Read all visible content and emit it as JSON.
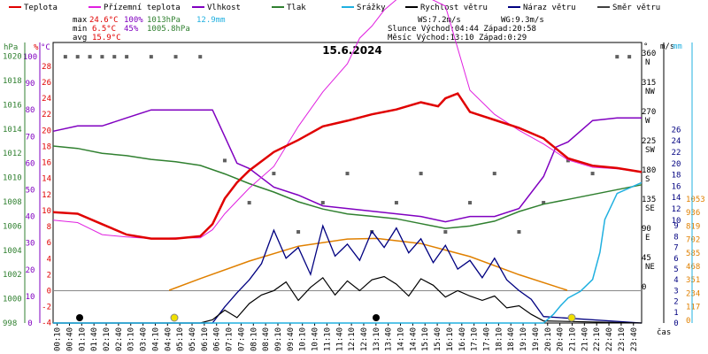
{
  "title": "15.6.2024",
  "legend": [
    {
      "label": "Teplota",
      "color": "#e00000"
    },
    {
      "label": "Přízemní teplota",
      "color": "#e020e0"
    },
    {
      "label": "Vlhkost",
      "color": "#8000c0"
    },
    {
      "label": "Tlak",
      "color": "#308030"
    },
    {
      "label": "Srážky",
      "color": "#20b0e0"
    },
    {
      "label": "Rychlost větru",
      "color": "#000000"
    },
    {
      "label": "Náraz větru",
      "color": "#000080"
    },
    {
      "label": "Směr větru",
      "color": "#404040"
    }
  ],
  "stats": {
    "max_label": "max",
    "max_temp": "24.6°C",
    "max_hum": "100%",
    "max_press": "1013hPa",
    "max_rain": "12.9mm",
    "min_label": "min",
    "min_temp": "6.5°C",
    "min_hum": "45%",
    "min_press": "1005.8hPa",
    "avg_label": "avg",
    "avg_temp": "15.9°C",
    "ws": "WS:7.2m/s",
    "wg": "WG:9.3m/s",
    "sun": "Slunce Východ:04:44  Západ:20:58",
    "moon": "Měsíc  Východ:13:10  Západ:0:29"
  },
  "axes": {
    "hpa_unit": "hPa",
    "pct_unit": "%",
    "c_unit": "°C",
    "deg_unit": "°",
    "ms_unit": "m/s",
    "mm_unit": "mm",
    "x_unit": "čas",
    "hpa_ticks": [
      "1020",
      "1018",
      "1016",
      "1014",
      "1012",
      "1010",
      "1008",
      "1006",
      "1004",
      "1002",
      "1000",
      "998"
    ],
    "pct_ticks": [
      "100",
      "90",
      "80",
      "70",
      "60",
      "50",
      "40",
      "30",
      "20",
      "10",
      "0"
    ],
    "c_ticks": [
      "28",
      "26",
      "24",
      "22",
      "20",
      "18",
      "16",
      "14",
      "12",
      "10",
      "8",
      "6",
      "4",
      "2",
      "0",
      "-2",
      "-4"
    ],
    "dir_ticks": [
      "360\nN",
      "315\nNW",
      "270\nW",
      "225\nSW",
      "180\nS",
      "135\nSE",
      "90\nE",
      "45\nNE",
      "0"
    ],
    "ms_ticks": [
      "26",
      "24",
      "22",
      "20",
      "18",
      "16",
      "14",
      "12",
      "10",
      "9",
      "8",
      "7",
      "6",
      "5",
      "4",
      "3",
      "2",
      "1",
      "0"
    ],
    "mm_ticks": [
      "1053",
      "936",
      "819",
      "702",
      "585",
      "468",
      "351",
      "234",
      "117",
      "0"
    ],
    "x_ticks": [
      "00:10",
      "00:40",
      "01:10",
      "01:40",
      "02:10",
      "02:40",
      "03:10",
      "03:40",
      "04:10",
      "04:40",
      "05:10",
      "05:40",
      "06:10",
      "06:40",
      "07:10",
      "07:40",
      "08:10",
      "08:40",
      "09:10",
      "09:40",
      "10:10",
      "10:40",
      "11:10",
      "11:40",
      "12:10",
      "12:40",
      "13:10",
      "13:40",
      "14:10",
      "14:40",
      "15:10",
      "15:40",
      "16:10",
      "16:40",
      "17:10",
      "17:40",
      "18:10",
      "18:40",
      "19:10",
      "19:40",
      "20:10",
      "20:40",
      "21:10",
      "21:40",
      "22:10",
      "22:40",
      "23:10",
      "23:40"
    ]
  },
  "chart_data": {
    "type": "line",
    "title": "15.6.2024",
    "x_unit": "hours",
    "ylim_temp": [
      -4,
      28
    ],
    "ylim_humidity": [
      0,
      100
    ],
    "ylim_pressure": [
      998,
      1020
    ],
    "ylim_wind": [
      0,
      26
    ],
    "series": [
      {
        "name": "Teplota",
        "unit": "°C",
        "x": [
          0,
          1,
          2,
          3,
          4,
          5,
          6,
          6.5,
          7,
          7.5,
          8,
          9,
          10,
          11,
          12,
          13,
          14,
          15,
          15.7,
          16,
          16.5,
          17,
          18,
          19,
          20,
          21,
          22,
          23,
          24
        ],
        "values": [
          9.8,
          9.6,
          8.3,
          7.0,
          6.5,
          6.5,
          6.8,
          8.3,
          11.5,
          13.5,
          15.0,
          17.3,
          18.8,
          20.5,
          21.2,
          22.0,
          22.6,
          23.5,
          23.0,
          24.0,
          24.6,
          22.3,
          21.3,
          20.3,
          19.0,
          16.5,
          15.6,
          15.3,
          14.8
        ]
      },
      {
        "name": "Přízemní teplota",
        "unit": "°C",
        "x": [
          0,
          1,
          2,
          3,
          4,
          5,
          6,
          6.5,
          7,
          7.5,
          8,
          9,
          10,
          11,
          12,
          12.5,
          13,
          13.5,
          14,
          15,
          16,
          17,
          18,
          19,
          20,
          21,
          22,
          23,
          24
        ],
        "values": [
          8.8,
          8.5,
          7.0,
          6.7,
          6.5,
          6.6,
          6.6,
          7.6,
          9.6,
          11.2,
          12.8,
          15.5,
          20.5,
          24.8,
          28.3,
          31.5,
          33.0,
          35.0,
          36.3,
          37.0,
          35.5,
          25.0,
          22.0,
          20.0,
          18.3,
          16.3,
          15.4,
          15.2,
          14.8
        ]
      },
      {
        "name": "Vlhkost",
        "unit": "%",
        "x": [
          0,
          1,
          2,
          3,
          4,
          5,
          6,
          6.5,
          7,
          7.5,
          8,
          9,
          10,
          11,
          12,
          13,
          14,
          15,
          16,
          17,
          18,
          19,
          20,
          20.5,
          21,
          22,
          23,
          24
        ],
        "values": [
          72,
          74,
          74,
          77,
          80,
          80,
          80,
          80,
          70,
          60,
          58,
          51,
          48,
          44,
          43,
          42,
          41,
          40,
          38,
          40,
          40,
          43,
          55,
          66,
          68,
          76,
          77,
          77
        ]
      },
      {
        "name": "Tlak",
        "unit": "hPa",
        "x": [
          0,
          1,
          2,
          3,
          4,
          5,
          6,
          7,
          8,
          9,
          10,
          11,
          12,
          13,
          14,
          15,
          16,
          17,
          18,
          19,
          20,
          21,
          22,
          23,
          24
        ],
        "values": [
          1012.6,
          1012.4,
          1012.0,
          1011.8,
          1011.5,
          1011.3,
          1011.0,
          1010.3,
          1009.5,
          1008.8,
          1008.0,
          1007.4,
          1007.0,
          1006.8,
          1006.6,
          1006.2,
          1005.8,
          1006.0,
          1006.4,
          1007.2,
          1007.8,
          1008.2,
          1008.6,
          1009.0,
          1009.4
        ]
      },
      {
        "name": "Srážky",
        "unit": "mm",
        "x": [
          0,
          20,
          20.4,
          20.7,
          21,
          21.5,
          22,
          22.3,
          22.5,
          23,
          24
        ],
        "values": [
          0,
          0,
          0.8,
          1.6,
          2.3,
          2.9,
          4.0,
          6.5,
          9.5,
          11.9,
          12.9
        ]
      },
      {
        "name": "Rychlost větru",
        "unit": "m/s",
        "x": [
          0,
          6,
          6.5,
          7,
          7.5,
          8,
          8.5,
          9,
          9.5,
          10,
          10.5,
          11,
          11.5,
          12,
          12.5,
          13,
          13.5,
          14,
          14.5,
          15,
          15.5,
          16,
          16.5,
          17,
          17.5,
          18,
          18.5,
          19,
          19.5,
          20,
          24
        ],
        "values": [
          0,
          0,
          0.3,
          1.2,
          0.5,
          1.8,
          2.6,
          3.0,
          3.8,
          2.1,
          3.3,
          4.2,
          2.6,
          3.9,
          3.0,
          4.0,
          4.3,
          3.6,
          2.5,
          4.1,
          3.5,
          2.4,
          3.0,
          2.5,
          2.1,
          2.5,
          1.4,
          1.6,
          0.8,
          0.2,
          0
        ]
      },
      {
        "name": "Náraz větru",
        "unit": "m/s",
        "x": [
          0,
          6.5,
          7,
          7.5,
          8,
          8.5,
          9,
          9.5,
          10,
          10.5,
          11,
          11.5,
          12,
          12.5,
          13,
          13.5,
          14,
          14.5,
          15,
          15.5,
          16,
          16.5,
          17,
          17.5,
          18,
          18.5,
          19,
          19.5,
          20,
          24
        ],
        "values": [
          0,
          0,
          1.5,
          2.8,
          4.0,
          5.5,
          8.6,
          6.0,
          7.0,
          4.5,
          9.0,
          6.2,
          7.3,
          5.8,
          8.5,
          7.0,
          8.8,
          6.5,
          7.8,
          5.6,
          7.2,
          5.0,
          5.8,
          4.2,
          6.0,
          4.0,
          3.0,
          2.2,
          0.6,
          0
        ]
      },
      {
        "name": "Směr větru",
        "unit": "°",
        "type": "scatter",
        "x": [
          0.5,
          1,
          1.5,
          2,
          2.5,
          3,
          4,
          5,
          6,
          7,
          8,
          9,
          10,
          11,
          12,
          13,
          14,
          15,
          16,
          17,
          18,
          19,
          20,
          21,
          22,
          23,
          23.5
        ],
        "values": [
          360,
          360,
          360,
          360,
          360,
          360,
          360,
          360,
          360,
          200,
          135,
          180,
          90,
          135,
          180,
          90,
          135,
          180,
          90,
          135,
          180,
          90,
          135,
          200,
          180,
          360,
          360
        ]
      },
      {
        "name": "Sluneční dráha",
        "unit": "°",
        "x": [
          4.73,
          6,
          8,
          10,
          12,
          13.2,
          15,
          17,
          19,
          20.97
        ],
        "values": [
          0,
          18,
          45,
          68,
          79,
          80,
          72,
          52,
          24,
          0
        ]
      }
    ]
  }
}
